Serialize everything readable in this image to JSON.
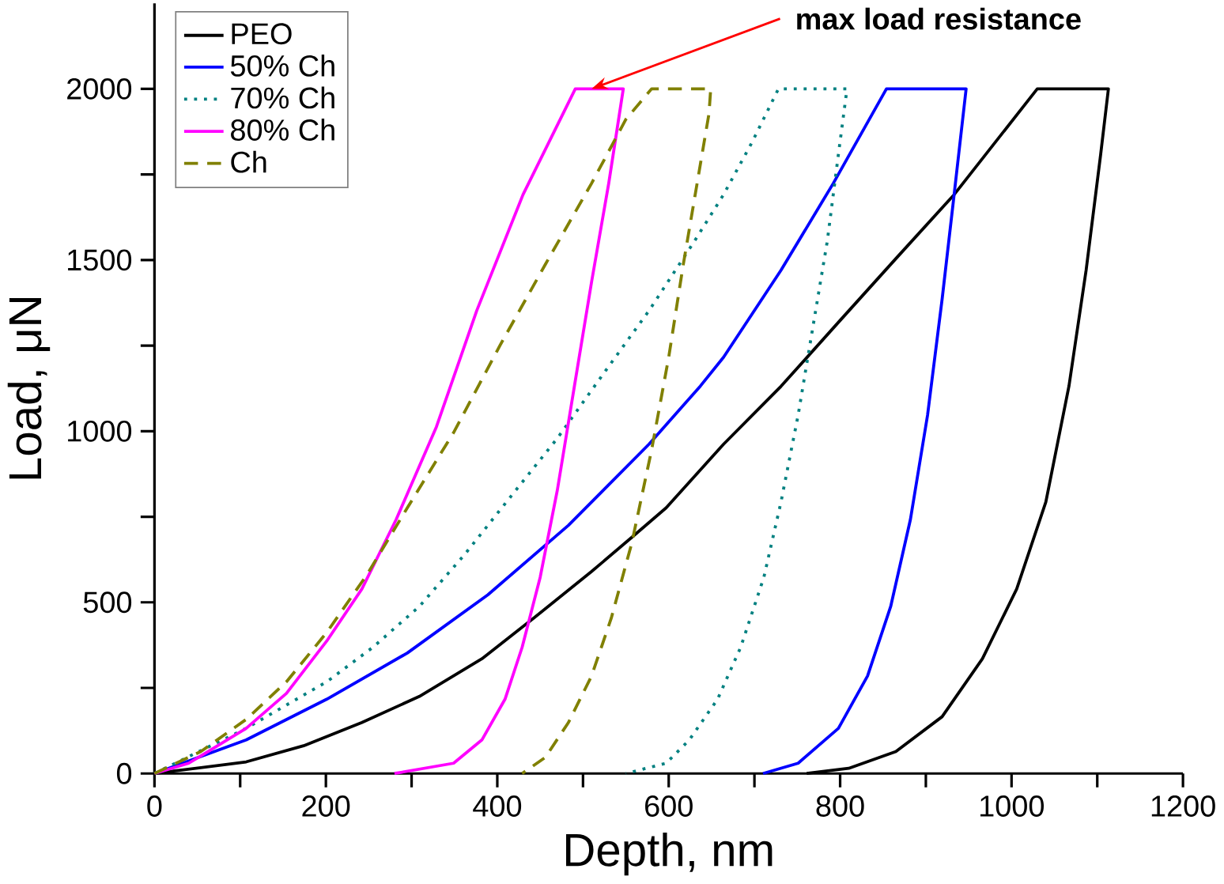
{
  "chart_data": {
    "type": "line",
    "xlabel": "Depth, nm",
    "ylabel": "Load, μN",
    "xlim": [
      0,
      1200
    ],
    "ylim": [
      0,
      2250
    ],
    "xticks": [
      0,
      {
        "value": 100,
        "label": null
      },
      200,
      {
        "value": 300,
        "label": null
      },
      400,
      {
        "value": 500,
        "label": null
      },
      600,
      {
        "value": 700,
        "label": null
      },
      800,
      {
        "value": 900,
        "label": null
      },
      1000,
      {
        "value": 1100,
        "label": null
      },
      1200
    ],
    "yticks": [
      0,
      {
        "value": 250,
        "label": null
      },
      500,
      {
        "value": 750,
        "label": null
      },
      1000,
      {
        "value": 1250,
        "label": null
      },
      1500,
      {
        "value": 1750,
        "label": null
      },
      2000
    ],
    "legend": "top left",
    "grid": false,
    "marker": "none",
    "annotations": [
      {
        "text": "max load resistance",
        "x": 510,
        "y": 2000
      }
    ],
    "series": [
      {
        "name": "PEO",
        "color": "#000000",
        "line_style": "solid",
        "x": [
          0,
          107,
          174,
          242,
          309,
          382,
          443,
          510,
          557,
          597,
          664,
          731,
          798,
          865,
          933,
          1030,
          1113,
          1104,
          1087,
          1067,
          1040,
          1006,
          966,
          919,
          865,
          810,
          761
        ],
        "values": [
          0,
          34,
          81,
          149,
          225,
          335,
          455,
          590,
          690,
          776,
          962,
          1131,
          1318,
          1504,
          1691,
          2000,
          2000,
          1809,
          1470,
          1132,
          793,
          539,
          335,
          166,
          64,
          15,
          0
        ]
      },
      {
        "name": "50% Ch",
        "color": "#0000ff",
        "line_style": "solid",
        "x": [
          0,
          107,
          201,
          295,
          389,
          483,
          577,
          637,
          664,
          731,
          792,
          854,
          947,
          933,
          919,
          902,
          882,
          859,
          832,
          798,
          751,
          710
        ],
        "values": [
          0,
          98,
          217,
          352,
          522,
          725,
          962,
          1132,
          1216,
          1470,
          1724,
          2000,
          2000,
          1691,
          1386,
          1047,
          742,
          488,
          285,
          132,
          30,
          0
        ]
      },
      {
        "name": "70% Ch",
        "color": "#008080",
        "line_style": "dotted",
        "x": [
          0,
          107,
          154,
          201,
          255,
          309,
          362,
          416,
          470,
          523,
          577,
          630,
          664,
          697,
          728,
          808,
          798,
          785,
          768,
          751,
          731,
          711,
          684,
          657,
          624,
          597,
          550
        ],
        "values": [
          0,
          132,
          200,
          268,
          369,
          488,
          640,
          810,
          979,
          1165,
          1352,
          1555,
          1691,
          1843,
          2000,
          2000,
          1809,
          1555,
          1301,
          1047,
          793,
          573,
          369,
          217,
          98,
          30,
          0
        ]
      },
      {
        "name": "80% Ch",
        "color": "#ff00ff",
        "line_style": "solid",
        "x": [
          0,
          40,
          107,
          154,
          201,
          242,
          282,
          329,
          376,
          430,
          491,
          547,
          530,
          510,
          490,
          470,
          450,
          429,
          409,
          382,
          349,
          280
        ],
        "values": [
          0,
          30,
          132,
          234,
          387,
          539,
          742,
          1013,
          1352,
          1691,
          2000,
          2000,
          1724,
          1436,
          1132,
          827,
          573,
          369,
          217,
          98,
          30,
          0
        ]
      },
      {
        "name": "Ch",
        "color": "#808000",
        "line_style": "dashed",
        "x": [
          0,
          54,
          107,
          154,
          201,
          248,
          295,
          349,
          403,
          456,
          510,
          550,
          580,
          649,
          647,
          617,
          600,
          580,
          557,
          533,
          510,
          483,
          456,
          429
        ],
        "values": [
          0,
          64,
          158,
          268,
          412,
          581,
          776,
          996,
          1250,
          1487,
          1724,
          1911,
          2000,
          2000,
          1928,
          1487,
          1216,
          945,
          674,
          454,
          285,
          149,
          47,
          0
        ]
      }
    ]
  }
}
